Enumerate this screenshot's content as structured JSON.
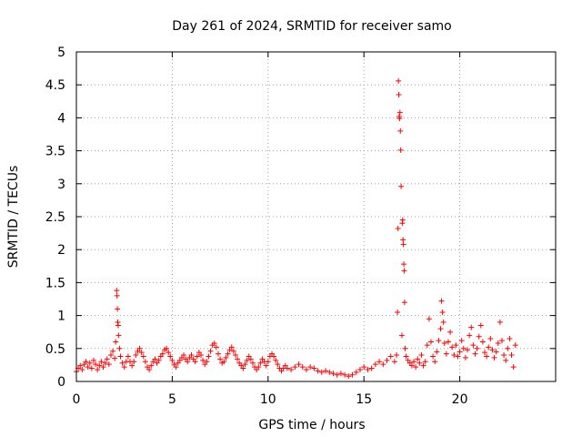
{
  "chart_data": {
    "type": "scatter",
    "title": "Day 261 of 2024, SRMTID for receiver samo",
    "xlabel": "GPS time / hours",
    "ylabel": "SRMTID / TECUs",
    "xlim": [
      0,
      25
    ],
    "ylim": [
      0,
      5
    ],
    "xticks": [
      0,
      5,
      10,
      15,
      20
    ],
    "xtick_labels": [
      "0",
      "5",
      "10",
      "15",
      "20"
    ],
    "yticks": [
      0,
      0.5,
      1,
      1.5,
      2,
      2.5,
      3,
      3.5,
      4,
      4.5,
      5
    ],
    "ytick_labels": [
      "0",
      "0.5",
      "1",
      "1.5",
      "2",
      "2.5",
      "3",
      "3.5",
      "4",
      "4.5",
      "5"
    ],
    "grid": true,
    "marker": "+",
    "series": [
      {
        "name": "SRMTID",
        "color": "#ff0000",
        "points": [
          [
            0.0,
            0.15
          ],
          [
            0.1,
            0.2
          ],
          [
            0.2,
            0.24
          ],
          [
            0.3,
            0.18
          ],
          [
            0.4,
            0.26
          ],
          [
            0.5,
            0.3
          ],
          [
            0.6,
            0.22
          ],
          [
            0.7,
            0.28
          ],
          [
            0.8,
            0.2
          ],
          [
            0.9,
            0.32
          ],
          [
            1.0,
            0.26
          ],
          [
            1.1,
            0.18
          ],
          [
            1.2,
            0.24
          ],
          [
            1.3,
            0.3
          ],
          [
            1.4,
            0.22
          ],
          [
            1.5,
            0.28
          ],
          [
            1.6,
            0.34
          ],
          [
            1.7,
            0.26
          ],
          [
            1.8,
            0.4
          ],
          [
            1.9,
            0.46
          ],
          [
            2.0,
            0.35
          ],
          [
            2.05,
            0.6
          ],
          [
            2.1,
            1.38
          ],
          [
            2.12,
            1.3
          ],
          [
            2.14,
            1.1
          ],
          [
            2.16,
            0.9
          ],
          [
            2.18,
            0.85
          ],
          [
            2.2,
            0.7
          ],
          [
            2.25,
            0.5
          ],
          [
            2.3,
            0.38
          ],
          [
            2.4,
            0.28
          ],
          [
            2.5,
            0.22
          ],
          [
            2.6,
            0.3
          ],
          [
            2.7,
            0.38
          ],
          [
            2.8,
            0.3
          ],
          [
            2.9,
            0.24
          ],
          [
            3.0,
            0.3
          ],
          [
            3.1,
            0.4
          ],
          [
            3.2,
            0.46
          ],
          [
            3.3,
            0.5
          ],
          [
            3.4,
            0.44
          ],
          [
            3.5,
            0.38
          ],
          [
            3.6,
            0.3
          ],
          [
            3.7,
            0.22
          ],
          [
            3.8,
            0.18
          ],
          [
            3.9,
            0.24
          ],
          [
            4.0,
            0.3
          ],
          [
            4.1,
            0.34
          ],
          [
            4.2,
            0.28
          ],
          [
            4.3,
            0.32
          ],
          [
            4.4,
            0.38
          ],
          [
            4.5,
            0.42
          ],
          [
            4.6,
            0.48
          ],
          [
            4.7,
            0.5
          ],
          [
            4.8,
            0.44
          ],
          [
            4.9,
            0.38
          ],
          [
            5.0,
            0.32
          ],
          [
            5.1,
            0.26
          ],
          [
            5.2,
            0.22
          ],
          [
            5.3,
            0.28
          ],
          [
            5.4,
            0.32
          ],
          [
            5.5,
            0.36
          ],
          [
            5.6,
            0.4
          ],
          [
            5.7,
            0.34
          ],
          [
            5.8,
            0.3
          ],
          [
            5.9,
            0.36
          ],
          [
            6.0,
            0.4
          ],
          [
            6.1,
            0.34
          ],
          [
            6.2,
            0.3
          ],
          [
            6.3,
            0.38
          ],
          [
            6.4,
            0.44
          ],
          [
            6.5,
            0.4
          ],
          [
            6.6,
            0.32
          ],
          [
            6.7,
            0.26
          ],
          [
            6.8,
            0.3
          ],
          [
            6.9,
            0.38
          ],
          [
            7.0,
            0.46
          ],
          [
            7.1,
            0.55
          ],
          [
            7.2,
            0.58
          ],
          [
            7.3,
            0.52
          ],
          [
            7.4,
            0.42
          ],
          [
            7.5,
            0.34
          ],
          [
            7.6,
            0.28
          ],
          [
            7.7,
            0.3
          ],
          [
            7.8,
            0.36
          ],
          [
            7.9,
            0.42
          ],
          [
            8.0,
            0.48
          ],
          [
            8.1,
            0.52
          ],
          [
            8.2,
            0.46
          ],
          [
            8.3,
            0.4
          ],
          [
            8.4,
            0.34
          ],
          [
            8.5,
            0.28
          ],
          [
            8.6,
            0.24
          ],
          [
            8.7,
            0.2
          ],
          [
            8.8,
            0.26
          ],
          [
            8.9,
            0.32
          ],
          [
            9.0,
            0.38
          ],
          [
            9.1,
            0.34
          ],
          [
            9.2,
            0.28
          ],
          [
            9.3,
            0.22
          ],
          [
            9.4,
            0.18
          ],
          [
            9.5,
            0.22
          ],
          [
            9.6,
            0.28
          ],
          [
            9.7,
            0.34
          ],
          [
            9.8,
            0.3
          ],
          [
            9.9,
            0.24
          ],
          [
            10.0,
            0.3
          ],
          [
            10.1,
            0.38
          ],
          [
            10.2,
            0.42
          ],
          [
            10.3,
            0.38
          ],
          [
            10.4,
            0.32
          ],
          [
            10.5,
            0.26
          ],
          [
            10.6,
            0.2
          ],
          [
            10.7,
            0.16
          ],
          [
            10.8,
            0.2
          ],
          [
            10.9,
            0.24
          ],
          [
            11.0,
            0.2
          ],
          [
            11.2,
            0.18
          ],
          [
            11.4,
            0.22
          ],
          [
            11.6,
            0.26
          ],
          [
            11.8,
            0.22
          ],
          [
            12.0,
            0.18
          ],
          [
            12.2,
            0.22
          ],
          [
            12.4,
            0.2
          ],
          [
            12.6,
            0.16
          ],
          [
            12.8,
            0.14
          ],
          [
            13.0,
            0.16
          ],
          [
            13.2,
            0.14
          ],
          [
            13.4,
            0.12
          ],
          [
            13.6,
            0.1
          ],
          [
            13.8,
            0.12
          ],
          [
            14.0,
            0.1
          ],
          [
            14.2,
            0.08
          ],
          [
            14.4,
            0.1
          ],
          [
            14.6,
            0.14
          ],
          [
            14.8,
            0.18
          ],
          [
            15.0,
            0.22
          ],
          [
            15.2,
            0.18
          ],
          [
            15.4,
            0.2
          ],
          [
            15.6,
            0.26
          ],
          [
            15.8,
            0.3
          ],
          [
            16.0,
            0.26
          ],
          [
            16.2,
            0.32
          ],
          [
            16.4,
            0.38
          ],
          [
            16.6,
            0.3
          ],
          [
            16.7,
            0.4
          ],
          [
            16.75,
            1.05
          ],
          [
            16.78,
            2.32
          ],
          [
            16.8,
            4.56
          ],
          [
            16.82,
            4.35
          ],
          [
            16.84,
            4.02
          ],
          [
            16.86,
            3.99
          ],
          [
            16.88,
            4.08
          ],
          [
            16.9,
            3.8
          ],
          [
            16.92,
            3.51
          ],
          [
            16.94,
            2.96
          ],
          [
            16.98,
            0.7
          ],
          [
            17.0,
            2.4
          ],
          [
            17.02,
            2.45
          ],
          [
            17.04,
            2.15
          ],
          [
            17.06,
            2.08
          ],
          [
            17.08,
            1.78
          ],
          [
            17.1,
            1.68
          ],
          [
            17.12,
            1.2
          ],
          [
            17.15,
            0.5
          ],
          [
            17.2,
            0.38
          ],
          [
            17.3,
            0.32
          ],
          [
            17.4,
            0.28
          ],
          [
            17.5,
            0.24
          ],
          [
            17.6,
            0.3
          ],
          [
            17.7,
            0.22
          ],
          [
            17.8,
            0.34
          ],
          [
            17.9,
            0.28
          ],
          [
            18.0,
            0.4
          ],
          [
            18.1,
            0.24
          ],
          [
            18.2,
            0.3
          ],
          [
            18.3,
            0.55
          ],
          [
            18.4,
            0.95
          ],
          [
            18.5,
            0.6
          ],
          [
            18.6,
            0.38
          ],
          [
            18.7,
            0.3
          ],
          [
            18.8,
            0.45
          ],
          [
            18.9,
            0.62
          ],
          [
            19.0,
            0.8
          ],
          [
            19.05,
            1.22
          ],
          [
            19.1,
            1.05
          ],
          [
            19.15,
            0.9
          ],
          [
            19.2,
            0.58
          ],
          [
            19.3,
            0.42
          ],
          [
            19.4,
            0.6
          ],
          [
            19.5,
            0.75
          ],
          [
            19.6,
            0.52
          ],
          [
            19.7,
            0.4
          ],
          [
            19.8,
            0.55
          ],
          [
            19.9,
            0.38
          ],
          [
            20.0,
            0.45
          ],
          [
            20.1,
            0.62
          ],
          [
            20.2,
            0.5
          ],
          [
            20.3,
            0.36
          ],
          [
            20.4,
            0.48
          ],
          [
            20.5,
            0.7
          ],
          [
            20.6,
            0.82
          ],
          [
            20.7,
            0.55
          ],
          [
            20.8,
            0.42
          ],
          [
            20.9,
            0.5
          ],
          [
            21.0,
            0.68
          ],
          [
            21.1,
            0.85
          ],
          [
            21.2,
            0.6
          ],
          [
            21.3,
            0.44
          ],
          [
            21.4,
            0.38
          ],
          [
            21.5,
            0.52
          ],
          [
            21.6,
            0.65
          ],
          [
            21.7,
            0.48
          ],
          [
            21.8,
            0.36
          ],
          [
            21.9,
            0.45
          ],
          [
            22.0,
            0.58
          ],
          [
            22.1,
            0.9
          ],
          [
            22.2,
            0.62
          ],
          [
            22.3,
            0.4
          ],
          [
            22.4,
            0.32
          ],
          [
            22.5,
            0.5
          ],
          [
            22.6,
            0.65
          ],
          [
            22.7,
            0.4
          ],
          [
            22.8,
            0.22
          ],
          [
            22.9,
            0.55
          ]
        ]
      }
    ]
  }
}
